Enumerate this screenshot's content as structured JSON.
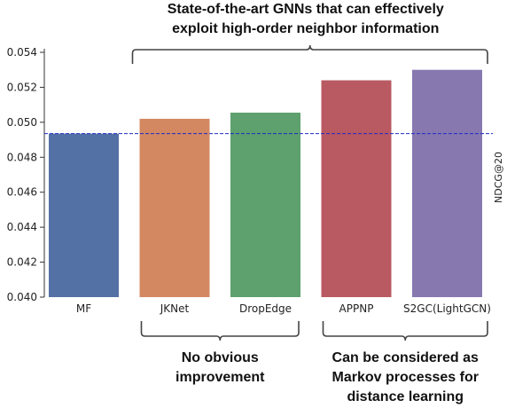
{
  "chart_data": {
    "type": "bar",
    "categories": [
      "MF",
      "JKNet",
      "DropEdge",
      "APPNP",
      "S2GC(LightGCN)"
    ],
    "values": [
      0.04935,
      0.0502,
      0.05055,
      0.0524,
      0.053
    ],
    "colors": [
      "#5471a5",
      "#d38862",
      "#5ea06e",
      "#b95962",
      "#8778b0"
    ],
    "ylabel": "NDCG@20",
    "ylim": [
      0.04,
      0.054
    ],
    "yticks": [
      0.04,
      0.042,
      0.044,
      0.046,
      0.048,
      0.05,
      0.052,
      0.054
    ],
    "ytick_labels": [
      "0.040",
      "0.042",
      "0.044",
      "0.046",
      "0.048",
      "0.050",
      "0.052",
      "0.054"
    ],
    "baseline": {
      "value": 0.04935,
      "color": "#1f2bc4",
      "style": "dashed"
    },
    "annotations": {
      "top": {
        "lines": [
          "State-of-the-art GNNs that can effectively",
          "exploit high-order neighbor information"
        ],
        "span": [
          "JKNet",
          "S2GC(LightGCN)"
        ]
      },
      "bottom_left": {
        "lines": [
          "No obvious",
          "improvement"
        ],
        "span": [
          "JKNet",
          "DropEdge"
        ]
      },
      "bottom_right": {
        "lines": [
          "Can be considered as",
          "Markov processes for",
          "distance learning"
        ],
        "span": [
          "APPNP",
          "S2GC(LightGCN)"
        ]
      }
    }
  }
}
